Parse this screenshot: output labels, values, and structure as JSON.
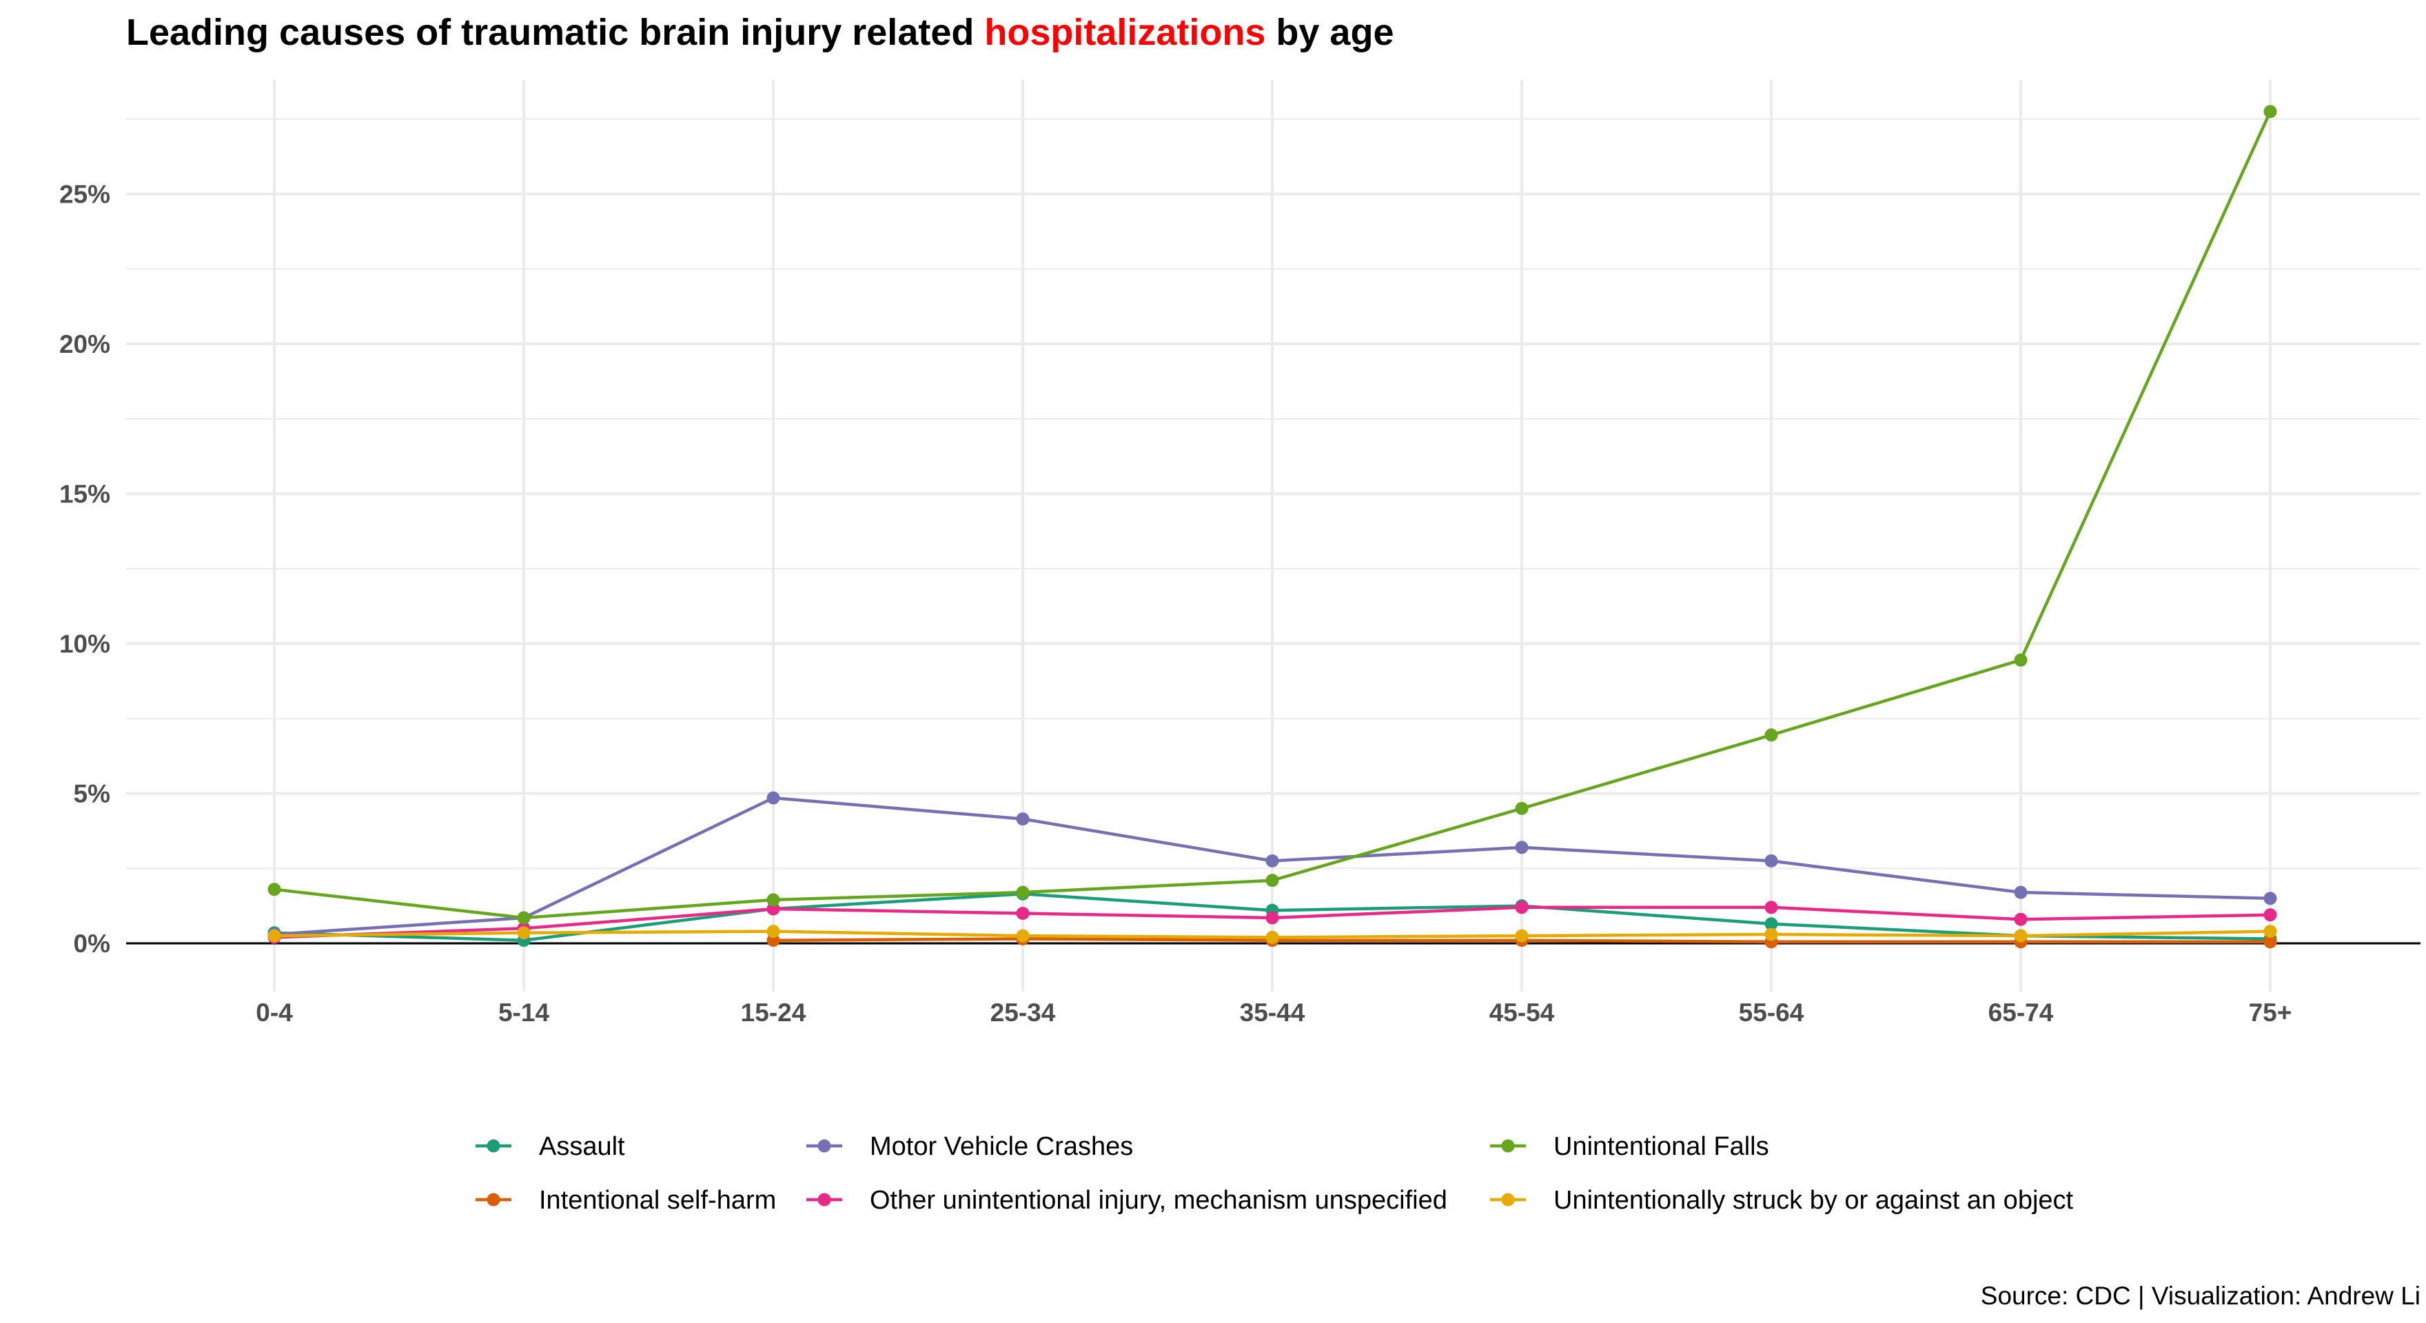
{
  "chart_data": {
    "type": "line",
    "title_prefix": "Leading causes of traumatic brain injury related ",
    "title_highlight": "hospitalizations",
    "title_suffix": " by age",
    "title_highlight_color": "#ff0000",
    "caption": "Source: CDC | Visualization: Andrew Li",
    "xlabel": "",
    "ylabel": "",
    "categories": [
      "0-4",
      "5-14",
      "15-24",
      "25-34",
      "35-44",
      "45-54",
      "55-64",
      "65-74",
      "75+"
    ],
    "ylim": [
      0,
      28
    ],
    "yticks": [
      0,
      5,
      10,
      15,
      20,
      25
    ],
    "ytick_labels": [
      "0%",
      "5%",
      "10%",
      "15%",
      "20%",
      "25%"
    ],
    "grid": true,
    "legend_position": "bottom",
    "series": [
      {
        "name": "Assault",
        "color": "#1b9e77",
        "values": [
          0.35,
          0.1,
          1.15,
          1.65,
          1.1,
          1.25,
          0.65,
          0.25,
          0.15
        ]
      },
      {
        "name": "Intentional self-harm",
        "color": "#d95f02",
        "values": [
          null,
          null,
          0.1,
          0.15,
          0.1,
          0.1,
          0.05,
          0.05,
          0.05
        ]
      },
      {
        "name": "Motor Vehicle Crashes",
        "color": "#7570b3",
        "values": [
          0.3,
          0.85,
          4.85,
          4.15,
          2.75,
          3.2,
          2.75,
          1.7,
          1.5
        ]
      },
      {
        "name": "Other unintentional injury, mechanism unspecified",
        "color": "#e7298a",
        "values": [
          0.2,
          0.5,
          1.15,
          1.0,
          0.85,
          1.2,
          1.2,
          0.8,
          0.95
        ]
      },
      {
        "name": "Unintentional Falls",
        "color": "#66a61e",
        "values": [
          1.8,
          0.85,
          1.45,
          1.7,
          2.1,
          4.5,
          6.95,
          9.45,
          27.75
        ]
      },
      {
        "name": "Unintentionally struck by or against an object",
        "color": "#e6ab02",
        "values": [
          0.25,
          0.35,
          0.4,
          0.25,
          0.2,
          0.25,
          0.3,
          0.25,
          0.4
        ]
      }
    ]
  }
}
